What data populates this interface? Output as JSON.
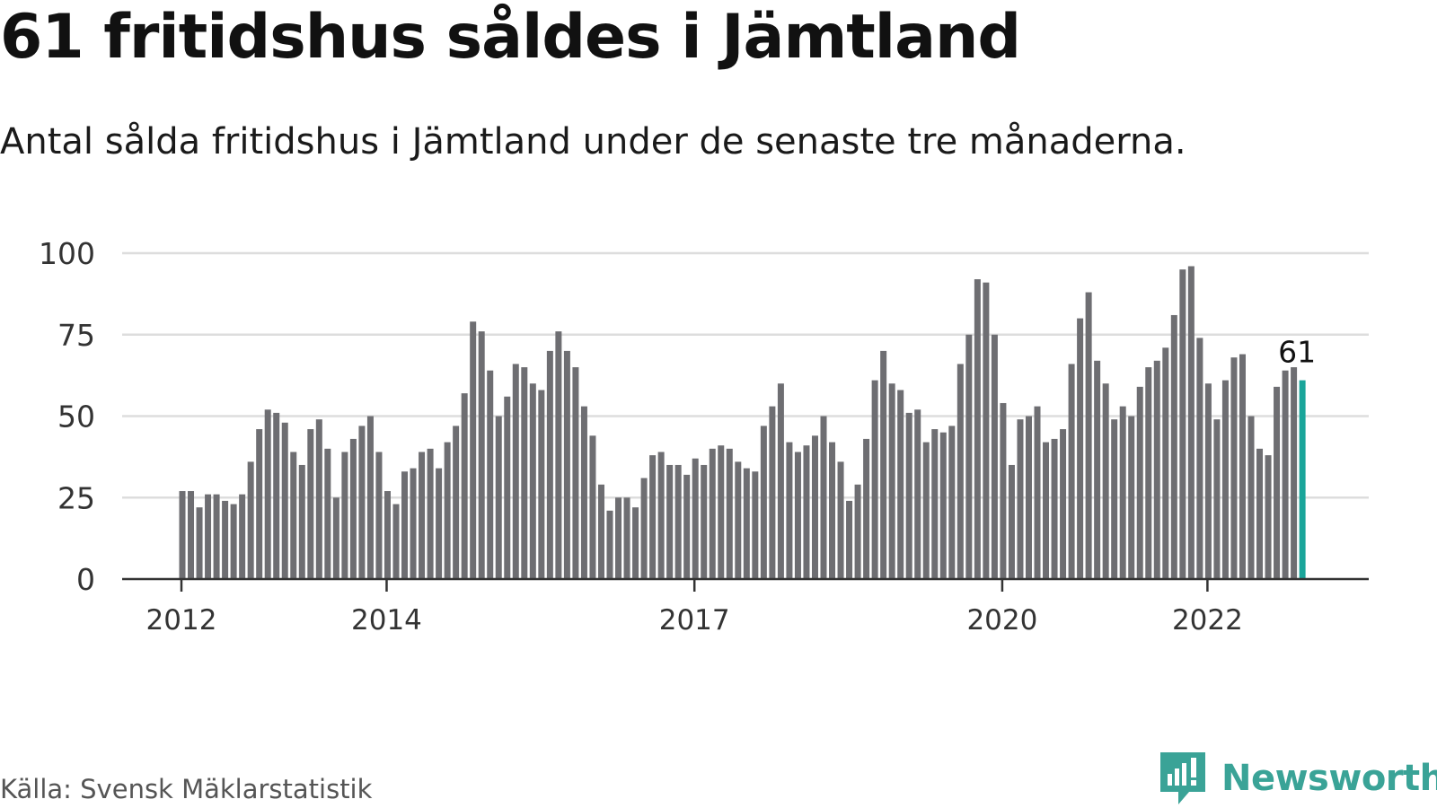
{
  "title": "61 fritidshus såldes i Jämtland",
  "subtitle": "Antal sålda fritidshus i Jämtland under de senaste tre månaderna.",
  "source": "Källa: Svensk Mäklarstatistik",
  "brand": "Newsworthy",
  "colors": {
    "bar": "#6e6e72",
    "highlight": "#1aa59a",
    "grid": "#dddddd",
    "axis": "#333333",
    "brand": "#3aa397"
  },
  "chart_data": {
    "type": "bar",
    "title": "61 fritidshus såldes i Jämtland",
    "subtitle": "Antal sålda fritidshus i Jämtland under de senaste tre månaderna.",
    "xlabel": "",
    "ylabel": "",
    "ylim": [
      0,
      100
    ],
    "yticks": [
      "0",
      "25",
      "50",
      "75",
      "100"
    ],
    "xticks": [
      "2012",
      "2014",
      "2017",
      "2020",
      "2022"
    ],
    "grid": true,
    "values": [
      27,
      27,
      22,
      26,
      26,
      24,
      23,
      26,
      36,
      46,
      52,
      51,
      48,
      39,
      35,
      46,
      49,
      40,
      25,
      39,
      43,
      47,
      50,
      39,
      27,
      23,
      33,
      34,
      39,
      40,
      34,
      42,
      47,
      57,
      79,
      76,
      64,
      50,
      56,
      66,
      65,
      60,
      58,
      70,
      76,
      70,
      65,
      53,
      44,
      29,
      21,
      25,
      25,
      22,
      31,
      38,
      39,
      35,
      35,
      32,
      37,
      35,
      40,
      41,
      40,
      36,
      34,
      33,
      47,
      53,
      60,
      42,
      39,
      41,
      44,
      50,
      42,
      36,
      24,
      29,
      43,
      61,
      70,
      60,
      58,
      51,
      52,
      42,
      46,
      45,
      47,
      66,
      75,
      92,
      91,
      75,
      54,
      35,
      49,
      50,
      53,
      42,
      43,
      46,
      66,
      80,
      88,
      67,
      60,
      49,
      53,
      50,
      59,
      65,
      67,
      71,
      81,
      95,
      96,
      74,
      60,
      49,
      61,
      68,
      69,
      50,
      40,
      38,
      59,
      64,
      65,
      61
    ],
    "highlight_last": true,
    "annotation": "61"
  }
}
